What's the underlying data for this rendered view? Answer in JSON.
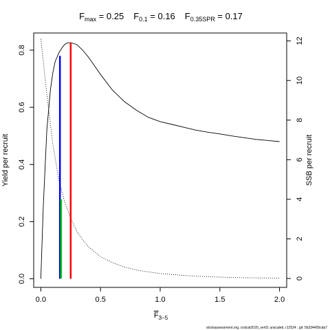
{
  "title": {
    "items": [
      {
        "symbol": "F",
        "subscript": "max",
        "eq": " = 0.25"
      },
      {
        "symbol": "F",
        "subscript": "0.1",
        "eq": " = 0.16"
      },
      {
        "symbol": "F",
        "subscript": "0.35SPR",
        "eq": " = 0.17"
      }
    ]
  },
  "footer": "stockassessment.org,  codcat2020_ver01  unscaled,  r12524 ;  git: 5b334405cda7",
  "chart_data": {
    "type": "line",
    "xlabel": {
      "symbol": "F",
      "subscript": "3−5"
    },
    "ylabel_left": "Yield per recruit",
    "ylabel_right": "SSB per recruit",
    "xlim": [
      -0.06,
      2.06
    ],
    "ylim_left": [
      -0.03,
      0.86
    ],
    "ylim_right": [
      -0.45,
      12.4
    ],
    "x_ticks": [
      0,
      0.5,
      1,
      1.5,
      2
    ],
    "x_tick_labels": [
      "0.0",
      "0.5",
      "1.0",
      "1.5",
      "2.0"
    ],
    "y_left_ticks": [
      0,
      0.2,
      0.4,
      0.6,
      0.8
    ],
    "y_left_tick_labels": [
      "0.0",
      "0.2",
      "0.4",
      "0.6",
      "0.8"
    ],
    "y_right_ticks": [
      0,
      2,
      4,
      6,
      8,
      10,
      12
    ],
    "y_right_tick_labels": [
      "0",
      "2",
      "4",
      "6",
      "8",
      "10",
      "12"
    ],
    "series": [
      {
        "axis": "left",
        "style": "solid",
        "color": "#000000",
        "x": [
          0,
          0.02,
          0.05,
          0.08,
          0.1,
          0.12,
          0.15,
          0.18,
          0.2,
          0.22,
          0.25,
          0.3,
          0.35,
          0.4,
          0.45,
          0.5,
          0.6,
          0.7,
          0.8,
          0.9,
          1.0,
          1.1,
          1.2,
          1.3,
          1.4,
          1.5,
          1.6,
          1.7,
          1.8,
          1.9,
          2.0
        ],
        "values": [
          0,
          0.25,
          0.52,
          0.66,
          0.72,
          0.76,
          0.79,
          0.81,
          0.82,
          0.825,
          0.826,
          0.82,
          0.8,
          0.775,
          0.745,
          0.715,
          0.66,
          0.62,
          0.59,
          0.565,
          0.55,
          0.54,
          0.53,
          0.52,
          0.513,
          0.507,
          0.5,
          0.494,
          0.488,
          0.484,
          0.48
        ]
      },
      {
        "axis": "right",
        "style": "dotted",
        "color": "#000000",
        "x": [
          0,
          0.05,
          0.1,
          0.15,
          0.2,
          0.25,
          0.3,
          0.35,
          0.4,
          0.5,
          0.6,
          0.7,
          0.8,
          0.9,
          1.0,
          1.2,
          1.4,
          1.6,
          1.8,
          2.0
        ],
        "values": [
          12.1,
          9.3,
          6.8,
          5.0,
          3.85,
          3.05,
          2.4,
          1.95,
          1.6,
          1.1,
          0.8,
          0.58,
          0.43,
          0.33,
          0.25,
          0.15,
          0.09,
          0.05,
          0.03,
          0.02
        ]
      }
    ],
    "reference_lines": [
      {
        "x": 0.16,
        "y_from": 0,
        "y_to": 0.78,
        "axis": "left",
        "color": "#0000ff"
      },
      {
        "x": 0.17,
        "y_from": 0,
        "y_to": 4.0,
        "axis": "right",
        "color": "#00cc00"
      },
      {
        "x": 0.25,
        "y_from": 0,
        "y_to": 0.826,
        "axis": "left",
        "color": "#ff0000"
      }
    ],
    "grid": false,
    "legend": "none"
  }
}
